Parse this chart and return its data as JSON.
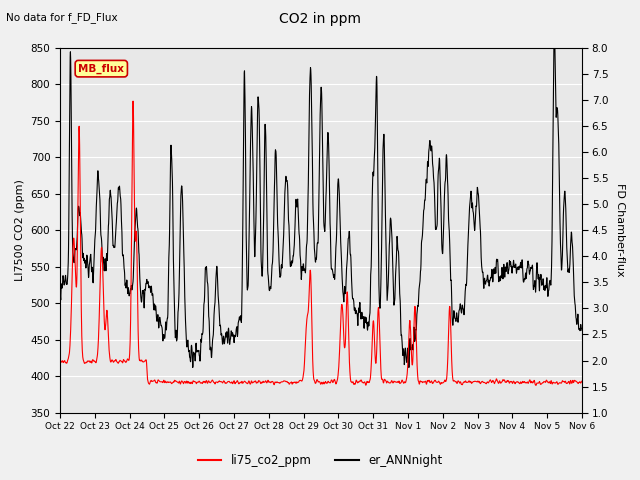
{
  "title": "CO2 in ppm",
  "subtitle": "No data for f_FD_Flux",
  "ylabel_left": "LI7500 CO2 (ppm)",
  "ylabel_right": "FD Chamber-flux",
  "ylim_left": [
    350,
    850
  ],
  "ylim_right": [
    1.0,
    8.0
  ],
  "yticks_left": [
    350,
    400,
    450,
    500,
    550,
    600,
    650,
    700,
    750,
    800,
    850
  ],
  "yticks_right": [
    1.0,
    1.5,
    2.0,
    2.5,
    3.0,
    3.5,
    4.0,
    4.5,
    5.0,
    5.5,
    6.0,
    6.5,
    7.0,
    7.5,
    8.0
  ],
  "xtick_labels": [
    "Oct 22",
    "Oct 23",
    "Oct 24",
    "Oct 25",
    "Oct 26",
    "Oct 27",
    "Oct 28",
    "Oct 29",
    "Oct 30",
    "Oct 31",
    "Nov 1",
    "Nov 2",
    "Nov 3",
    "Nov 4",
    "Nov 5",
    "Nov 6"
  ],
  "legend_labels": [
    "li75_co2_ppm",
    "er_ANNnight"
  ],
  "legend_colors": [
    "#ff0000",
    "#000000"
  ],
  "line_lw": 0.8,
  "plot_bg_color": "#e8e8e8",
  "fig_bg_color": "#f0f0f0",
  "grid_color": "#ffffff",
  "mb_flux_box_color": "#ffff99",
  "mb_flux_text_color": "#cc0000",
  "mb_flux_border_color": "#cc0000"
}
